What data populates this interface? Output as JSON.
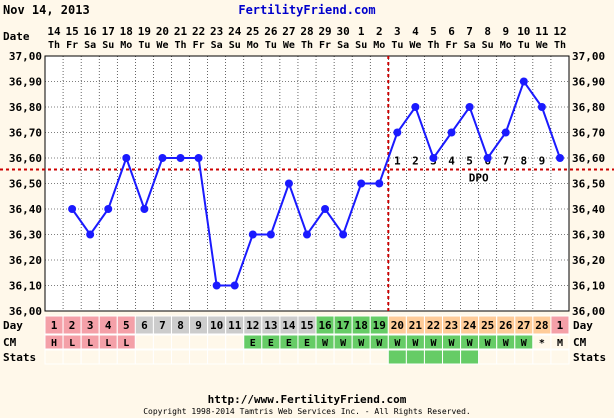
{
  "header": {
    "date": "Nov 14, 2013",
    "site": "FertilityFriend.com"
  },
  "footer": {
    "url": "http://www.FertilityFriend.com",
    "copyright": "Copyright 1998-2014 Tamtris Web Services Inc. - All Rights Reserved."
  },
  "colors": {
    "line": "#1a1aff",
    "coverline": "#cc0000",
    "menstrual": "#f4a0a8",
    "follicular": "#cccccc",
    "fertile": "#66cc66",
    "luteal": "#ffcc99",
    "cm_egg": "#66cc66",
    "cm_watery": "#66cc66"
  },
  "row_labels": {
    "date": "Date",
    "day": "Day",
    "cm": "CM",
    "stats": "Stats"
  },
  "chart_data": {
    "type": "line",
    "dates": [
      "14",
      "15",
      "16",
      "17",
      "18",
      "19",
      "20",
      "21",
      "22",
      "23",
      "24",
      "25",
      "26",
      "27",
      "28",
      "29",
      "30",
      "1",
      "2",
      "3",
      "4",
      "5",
      "6",
      "7",
      "8",
      "9",
      "10",
      "11",
      "12"
    ],
    "weekdays": [
      "Th",
      "Fr",
      "Sa",
      "Su",
      "Mo",
      "Tu",
      "We",
      "Th",
      "Fr",
      "Sa",
      "Su",
      "Mo",
      "Tu",
      "We",
      "Th",
      "Fr",
      "Sa",
      "Su",
      "Mo",
      "Tu",
      "We",
      "Th",
      "Fr",
      "Sa",
      "Su",
      "Mo",
      "Tu",
      "We",
      "Th"
    ],
    "cycle_days": [
      "1",
      "2",
      "3",
      "4",
      "5",
      "6",
      "7",
      "8",
      "9",
      "10",
      "11",
      "12",
      "13",
      "14",
      "15",
      "16",
      "17",
      "18",
      "19",
      "20",
      "21",
      "22",
      "23",
      "24",
      "25",
      "26",
      "27",
      "28",
      "1"
    ],
    "day_phases": [
      "m",
      "m",
      "m",
      "m",
      "m",
      "f",
      "f",
      "f",
      "f",
      "f",
      "f",
      "f",
      "f",
      "f",
      "f",
      "o",
      "o",
      "o",
      "o",
      "l",
      "l",
      "l",
      "l",
      "l",
      "l",
      "l",
      "l",
      "l",
      "m"
    ],
    "temps": [
      null,
      36.4,
      36.3,
      36.4,
      36.6,
      36.4,
      36.6,
      36.6,
      36.6,
      36.1,
      36.1,
      36.3,
      36.3,
      36.5,
      36.3,
      36.4,
      36.3,
      36.5,
      36.5,
      36.7,
      36.8,
      36.6,
      36.7,
      36.8,
      36.6,
      36.7,
      36.9,
      36.8,
      36.6
    ],
    "cm": [
      "H",
      "L",
      "L",
      "L",
      "L",
      "",
      "",
      "",
      "",
      "",
      "",
      "E",
      "E",
      "E",
      "E",
      "W",
      "W",
      "W",
      "W",
      "W",
      "W",
      "W",
      "W",
      "W",
      "W",
      "W",
      "W",
      "*",
      "M"
    ],
    "cm_fill": [
      "m",
      "m",
      "m",
      "m",
      "m",
      "",
      "",
      "",
      "",
      "",
      "",
      "g",
      "g",
      "g",
      "g",
      "g",
      "g",
      "g",
      "g",
      "g",
      "g",
      "g",
      "g",
      "g",
      "g",
      "g",
      "g",
      "",
      ""
    ],
    "stats_fill": [
      "",
      "",
      "",
      "",
      "",
      "",
      "",
      "",
      "",
      "",
      "",
      "",
      "",
      "",
      "",
      "",
      "",
      "",
      "",
      "g",
      "g",
      "g",
      "g",
      "g",
      "",
      "",
      "",
      "",
      ""
    ],
    "dpo_labels": [
      "1",
      "2",
      "3",
      "4",
      "5",
      "6",
      "7",
      "8",
      "9"
    ],
    "dpo_text": "DPO",
    "ovulation_index": 18,
    "coverline": 36.555,
    "ylim": [
      36.0,
      37.0
    ],
    "yticks": [
      "37,00",
      "36,90",
      "36,80",
      "36,70",
      "36,60",
      "36,50",
      "36,40",
      "36,30",
      "36,20",
      "36,10",
      "36,00"
    ]
  }
}
